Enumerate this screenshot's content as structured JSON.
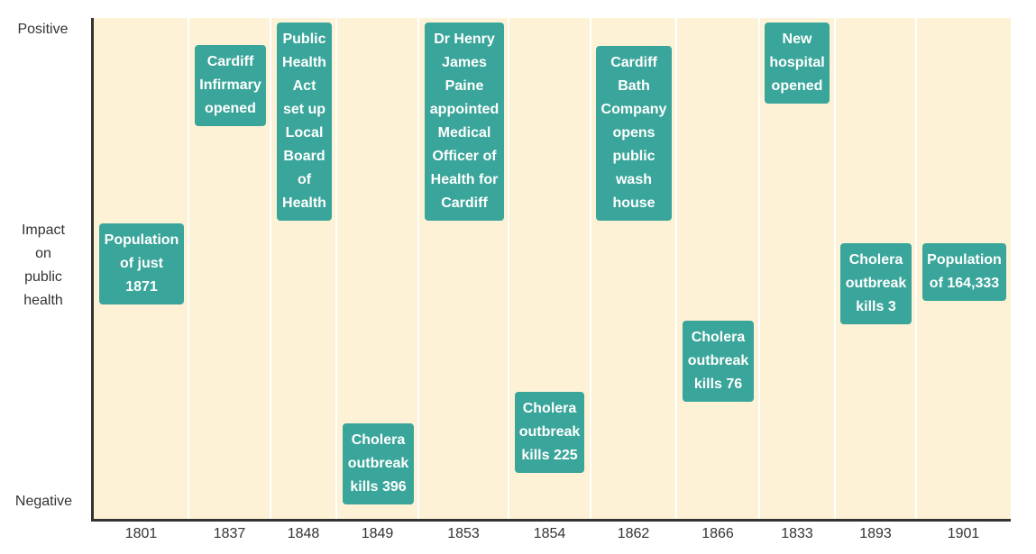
{
  "chart_data": {
    "type": "timeline",
    "ylabel": "Impact on public health",
    "y_top_label": "Positive",
    "y_bottom_label": "Negative",
    "categories": [
      "1801",
      "1837",
      "1848",
      "1849",
      "1853",
      "1854",
      "1862",
      "1866",
      "1833",
      "1893",
      "1901"
    ],
    "events": [
      {
        "year": "1801",
        "label": "Population of just 1871",
        "impact": 0.13
      },
      {
        "year": "1837",
        "label": "Cardiff Infirmary opened",
        "impact": 0.8
      },
      {
        "year": "1848",
        "label": "Public Health Act set up Local Board of Health",
        "impact": 0.72
      },
      {
        "year": "1849",
        "label": "Cholera outbreak kills 396",
        "impact": -0.7
      },
      {
        "year": "1853",
        "label": "Dr Henry James Paine appointed Medical Officer of Health for Cardiff",
        "impact": 0.72
      },
      {
        "year": "1854",
        "label": "Cholera outbreak kills 225",
        "impact": -0.54
      },
      {
        "year": "1862",
        "label": "Cardiff Bath Company opens public wash house",
        "impact": 0.73
      },
      {
        "year": "1866",
        "label": "Cholera outbreak kills 76",
        "impact": -0.29
      },
      {
        "year": "1833",
        "label": "New hospital opened",
        "impact": 0.88
      },
      {
        "year": "1893",
        "label": "Cholera outbreak kills 3",
        "impact": -0.06
      },
      {
        "year": "1901",
        "label": "Population of 164,333",
        "impact": 0.06
      }
    ]
  }
}
